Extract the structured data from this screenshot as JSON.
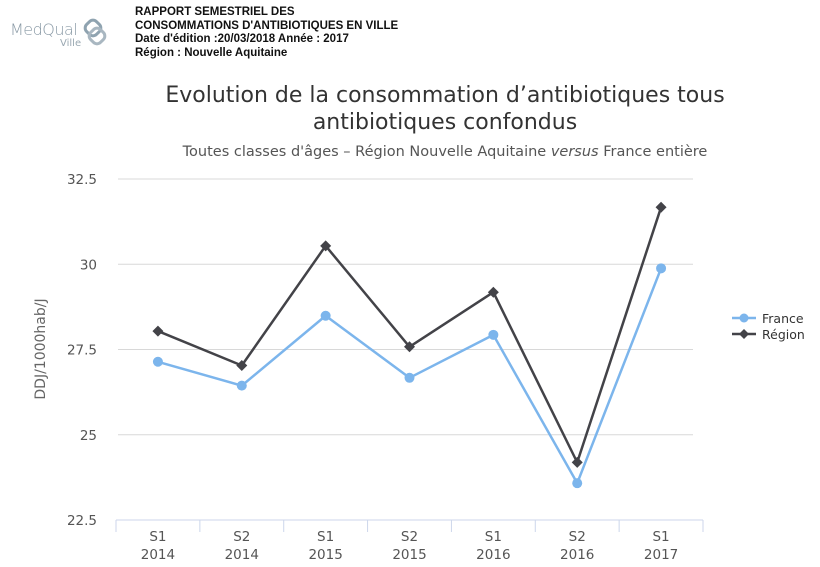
{
  "header": {
    "logo": {
      "name": "MedQual",
      "sub": "Ville"
    },
    "lines": [
      "RAPPORT SEMESTRIEL DES",
      "CONSOMMATIONS D'ANTIBIOTIQUES EN VILLE",
      "Date d'édition :20/03/2018 Année : 2017",
      "Région : Nouvelle Aquitaine"
    ]
  },
  "chart": {
    "title": "Evolution de la consommation d’antibiotiques tous antibiotiques confondus",
    "subtitle_pre": "Toutes classes d'âges – Région Nouvelle Aquitaine ",
    "subtitle_em": "versus",
    "subtitle_post": " France entière"
  },
  "legend": [
    {
      "label": "France",
      "color": "#7cb5ec",
      "marker": "circle"
    },
    {
      "label": "Région",
      "color": "#434348",
      "marker": "diamond"
    }
  ],
  "chart_data": {
    "type": "line",
    "title": "Evolution de la consommation d’antibiotiques tous antibiotiques confondus",
    "subtitle": "Toutes classes d'âges – Région Nouvelle Aquitaine versus France entière",
    "xlabel": "",
    "ylabel": "DDJ/1000hab/J",
    "categories": [
      "S1 2014",
      "S2 2014",
      "S1 2015",
      "S2 2015",
      "S1 2016",
      "S2 2016",
      "S1 2017"
    ],
    "category_lines": [
      [
        "S1",
        "2014"
      ],
      [
        "S2",
        "2014"
      ],
      [
        "S1",
        "2015"
      ],
      [
        "S2",
        "2015"
      ],
      [
        "S1",
        "2016"
      ],
      [
        "S2",
        "2016"
      ],
      [
        "S1",
        "2017"
      ]
    ],
    "series": [
      {
        "name": "France",
        "color": "#7cb5ec",
        "marker": "circle",
        "values": [
          27.14,
          26.44,
          28.49,
          26.67,
          27.93,
          23.58,
          29.88
        ]
      },
      {
        "name": "Région",
        "color": "#434348",
        "marker": "diamond",
        "values": [
          28.04,
          27.03,
          30.54,
          27.58,
          29.18,
          24.19,
          31.67
        ]
      }
    ],
    "ylim": [
      22.5,
      32.5
    ],
    "yticks": [
      22.5,
      25,
      27.5,
      30,
      32.5
    ],
    "ytick_labels": [
      "22.5",
      "25",
      "27.5",
      "30",
      "32.5"
    ],
    "grid": true,
    "legend_position": "right"
  }
}
